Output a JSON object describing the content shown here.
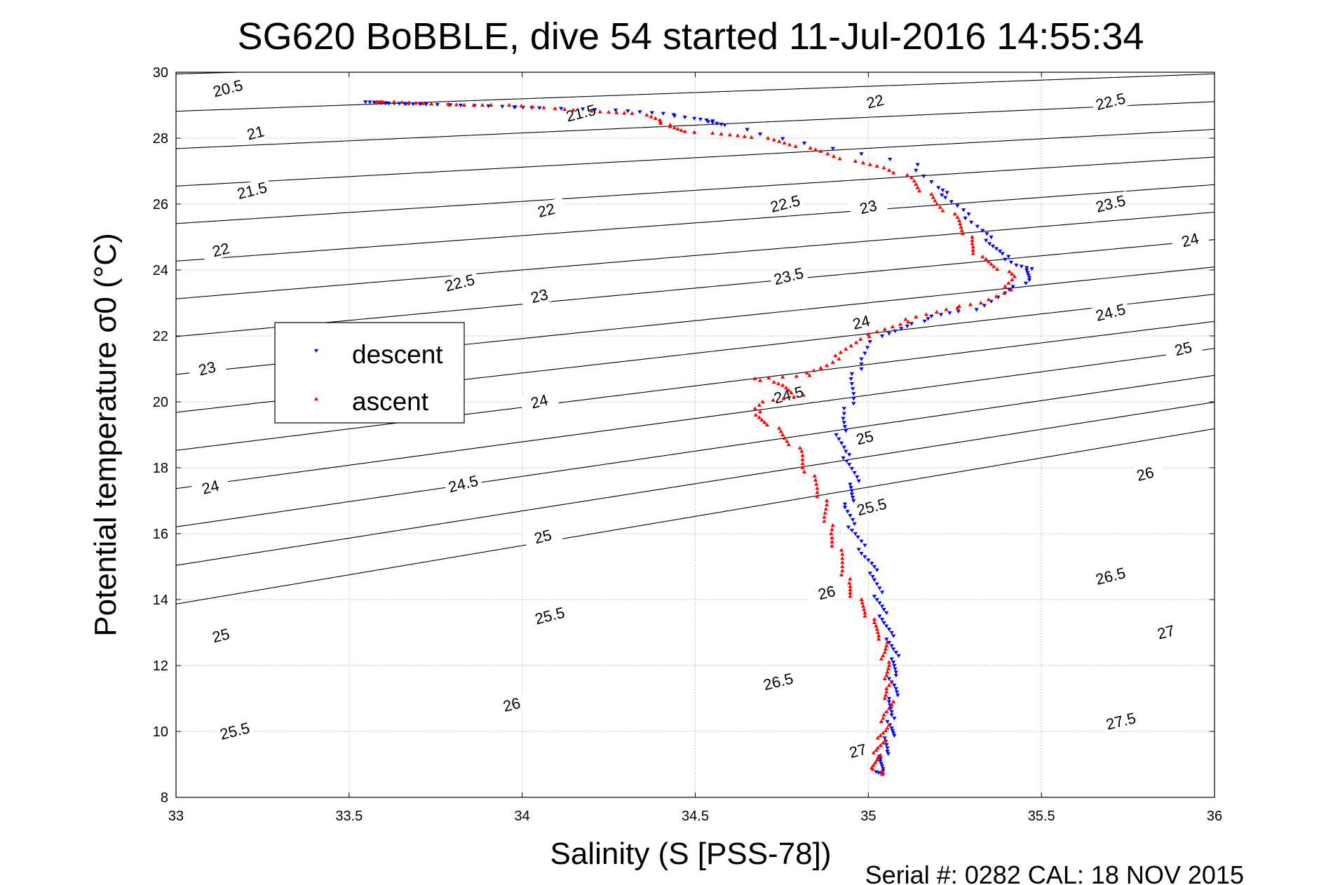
{
  "chart_data": {
    "type": "scatter",
    "title": "SG620 BoBBLE, dive 54 started 11-Jul-2016 14:55:34",
    "xlabel": "Salinity (S [PSS-78])",
    "ylabel": "Potential temperature σ0 (°C)",
    "xlim": [
      33,
      36
    ],
    "ylim": [
      8,
      30
    ],
    "xticks": [
      33,
      33.5,
      34,
      34.5,
      35,
      35.5,
      36
    ],
    "xtick_labels": [
      "33",
      "33.5",
      "34",
      "34.5",
      "35",
      "35.5",
      "36"
    ],
    "yticks": [
      8,
      10,
      12,
      14,
      16,
      18,
      20,
      22,
      24,
      26,
      28,
      30
    ],
    "ytick_labels": [
      "8",
      "10",
      "12",
      "14",
      "16",
      "18",
      "20",
      "22",
      "24",
      "26",
      "28",
      "30"
    ],
    "grid": true,
    "legend": {
      "position": "left",
      "entries": [
        "descent",
        "ascent"
      ]
    },
    "footer": "Serial #: 0282  CAL: 18 NOV 2015",
    "density_contours": {
      "levels": [
        20.5,
        21,
        21.5,
        22,
        22.5,
        23,
        23.5,
        24,
        24.5,
        25,
        25.5,
        26,
        26.5,
        27,
        27.5
      ],
      "level_labels": [
        "20.5",
        "21",
        "21.5",
        "22",
        "22.5",
        "23",
        "23.5",
        "24",
        "24.5",
        "25",
        "25.5",
        "26",
        "26.5",
        "27",
        "27.5"
      ],
      "labelled_points": [
        {
          "text": "20.5",
          "s": 33.15,
          "t": 29.5
        },
        {
          "text": "21",
          "s": 33.23,
          "t": 28.15
        },
        {
          "text": "21.5",
          "s": 33.22,
          "t": 26.4
        },
        {
          "text": "22",
          "s": 33.13,
          "t": 24.6
        },
        {
          "text": "23",
          "s": 33.09,
          "t": 21.0
        },
        {
          "text": "24",
          "s": 33.1,
          "t": 17.4
        },
        {
          "text": "25",
          "s": 33.13,
          "t": 12.9
        },
        {
          "text": "25.5",
          "s": 33.17,
          "t": 10.0
        },
        {
          "text": "21.5",
          "s": 34.17,
          "t": 28.75
        },
        {
          "text": "22",
          "s": 34.07,
          "t": 25.8
        },
        {
          "text": "22.5",
          "s": 33.82,
          "t": 23.6
        },
        {
          "text": "23",
          "s": 34.05,
          "t": 23.2
        },
        {
          "text": "24",
          "s": 34.05,
          "t": 20.0
        },
        {
          "text": "24.5",
          "s": 33.83,
          "t": 17.5
        },
        {
          "text": "25",
          "s": 34.06,
          "t": 15.9
        },
        {
          "text": "25.5",
          "s": 34.08,
          "t": 13.5
        },
        {
          "text": "26",
          "s": 33.97,
          "t": 10.8
        },
        {
          "text": "22",
          "s": 35.02,
          "t": 29.1
        },
        {
          "text": "22.5",
          "s": 34.76,
          "t": 26.0
        },
        {
          "text": "23",
          "s": 35.0,
          "t": 25.9
        },
        {
          "text": "23.5",
          "s": 34.77,
          "t": 23.8
        },
        {
          "text": "24",
          "s": 34.98,
          "t": 22.4
        },
        {
          "text": "24.5",
          "s": 34.77,
          "t": 20.2
        },
        {
          "text": "25",
          "s": 34.99,
          "t": 18.9
        },
        {
          "text": "25.5",
          "s": 35.01,
          "t": 16.8
        },
        {
          "text": "26",
          "s": 34.88,
          "t": 14.2
        },
        {
          "text": "26.5",
          "s": 34.74,
          "t": 11.5
        },
        {
          "text": "27",
          "s": 34.97,
          "t": 9.4
        },
        {
          "text": "22.5",
          "s": 35.7,
          "t": 29.1
        },
        {
          "text": "23.5",
          "s": 35.7,
          "t": 26.0
        },
        {
          "text": "24",
          "s": 35.93,
          "t": 24.9
        },
        {
          "text": "24.5",
          "s": 35.7,
          "t": 22.7
        },
        {
          "text": "25",
          "s": 35.91,
          "t": 21.6
        },
        {
          "text": "26",
          "s": 35.8,
          "t": 17.8
        },
        {
          "text": "26.5",
          "s": 35.7,
          "t": 14.7
        },
        {
          "text": "27",
          "s": 35.86,
          "t": 13.0
        },
        {
          "text": "27.5",
          "s": 35.73,
          "t": 10.3
        }
      ]
    },
    "series": [
      {
        "name": "descent",
        "color": "#0000ff",
        "marker": "triangle-down",
        "points": [
          [
            33.56,
            29.1
          ],
          [
            33.59,
            29.08
          ],
          [
            33.62,
            29.06
          ],
          [
            33.66,
            29.05
          ],
          [
            33.72,
            29.03
          ],
          [
            33.83,
            29.0
          ],
          [
            33.97,
            28.95
          ],
          [
            34.05,
            28.92
          ],
          [
            34.28,
            28.85
          ],
          [
            34.4,
            28.75
          ],
          [
            34.5,
            28.6
          ],
          [
            34.55,
            28.5
          ],
          [
            34.58,
            28.4
          ],
          [
            34.82,
            27.85
          ],
          [
            35.13,
            27.2
          ],
          [
            35.2,
            26.5
          ],
          [
            35.23,
            26.2
          ],
          [
            35.28,
            25.7
          ],
          [
            35.33,
            25.2
          ],
          [
            35.36,
            24.8
          ],
          [
            35.38,
            24.5
          ],
          [
            35.43,
            24.15
          ],
          [
            35.47,
            24.0
          ],
          [
            35.46,
            23.7
          ],
          [
            35.4,
            23.3
          ],
          [
            35.3,
            22.8
          ],
          [
            35.18,
            22.6
          ],
          [
            35.12,
            22.3
          ],
          [
            35.03,
            22.0
          ],
          [
            34.98,
            21.3
          ],
          [
            34.96,
            20.7
          ],
          [
            34.95,
            20.1
          ],
          [
            34.93,
            19.5
          ],
          [
            34.92,
            19.0
          ],
          [
            34.93,
            18.5
          ],
          [
            34.95,
            18.1
          ],
          [
            34.96,
            17.6
          ],
          [
            34.95,
            17.2
          ],
          [
            34.94,
            16.8
          ],
          [
            34.95,
            16.3
          ],
          [
            34.97,
            15.9
          ],
          [
            34.99,
            15.4
          ],
          [
            35.01,
            15.0
          ],
          [
            35.02,
            14.6
          ],
          [
            35.03,
            14.1
          ],
          [
            35.04,
            13.7
          ],
          [
            35.05,
            13.3
          ],
          [
            35.06,
            12.9
          ],
          [
            35.07,
            12.5
          ],
          [
            35.08,
            12.1
          ],
          [
            35.07,
            11.7
          ],
          [
            35.08,
            11.3
          ],
          [
            35.07,
            10.9
          ],
          [
            35.06,
            10.5
          ],
          [
            35.07,
            10.1
          ],
          [
            35.06,
            9.8
          ],
          [
            35.05,
            9.4
          ],
          [
            35.04,
            9.1
          ],
          [
            35.03,
            8.8
          ],
          [
            35.04,
            8.7
          ]
        ]
      },
      {
        "name": "ascent",
        "color": "#ff0000",
        "marker": "triangle-up",
        "points": [
          [
            35.04,
            8.7
          ],
          [
            35.02,
            8.9
          ],
          [
            35.02,
            9.2
          ],
          [
            35.03,
            9.5
          ],
          [
            35.04,
            9.8
          ],
          [
            35.05,
            10.1
          ],
          [
            35.05,
            10.5
          ],
          [
            35.06,
            10.9
          ],
          [
            35.05,
            11.3
          ],
          [
            35.06,
            11.7
          ],
          [
            35.05,
            12.1
          ],
          [
            35.05,
            12.5
          ],
          [
            35.04,
            12.9
          ],
          [
            35.01,
            13.3
          ],
          [
            34.99,
            13.7
          ],
          [
            34.96,
            14.1
          ],
          [
            34.94,
            14.5
          ],
          [
            34.93,
            15.0
          ],
          [
            34.91,
            15.5
          ],
          [
            34.89,
            16.0
          ],
          [
            34.88,
            16.5
          ],
          [
            34.87,
            17.0
          ],
          [
            34.85,
            17.5
          ],
          [
            34.82,
            18.0
          ],
          [
            34.8,
            18.5
          ],
          [
            34.76,
            18.9
          ],
          [
            34.72,
            19.3
          ],
          [
            34.67,
            19.6
          ],
          [
            34.7,
            20.0
          ],
          [
            34.8,
            20.2
          ],
          [
            34.75,
            20.5
          ],
          [
            34.68,
            20.7
          ],
          [
            34.82,
            20.8
          ],
          [
            34.88,
            21.1
          ],
          [
            34.93,
            21.5
          ],
          [
            34.97,
            21.9
          ],
          [
            35.05,
            22.2
          ],
          [
            35.12,
            22.5
          ],
          [
            35.22,
            22.8
          ],
          [
            35.33,
            23.0
          ],
          [
            35.4,
            23.4
          ],
          [
            35.42,
            23.8
          ],
          [
            35.37,
            24.1
          ],
          [
            35.32,
            24.4
          ],
          [
            35.3,
            24.8
          ],
          [
            35.28,
            25.2
          ],
          [
            35.25,
            25.6
          ],
          [
            35.2,
            26.0
          ],
          [
            35.16,
            26.4
          ],
          [
            35.12,
            26.8
          ],
          [
            35.05,
            27.1
          ],
          [
            34.95,
            27.3
          ],
          [
            34.86,
            27.6
          ],
          [
            34.78,
            27.8
          ],
          [
            34.7,
            28.0
          ],
          [
            34.6,
            28.1
          ],
          [
            34.48,
            28.2
          ],
          [
            34.42,
            28.35
          ],
          [
            34.4,
            28.55
          ],
          [
            34.33,
            28.75
          ],
          [
            34.22,
            28.8
          ],
          [
            34.1,
            28.9
          ],
          [
            33.95,
            29.0
          ],
          [
            33.83,
            29.0
          ],
          [
            33.72,
            29.05
          ],
          [
            33.62,
            29.1
          ],
          [
            33.58,
            29.1
          ]
        ]
      }
    ]
  }
}
